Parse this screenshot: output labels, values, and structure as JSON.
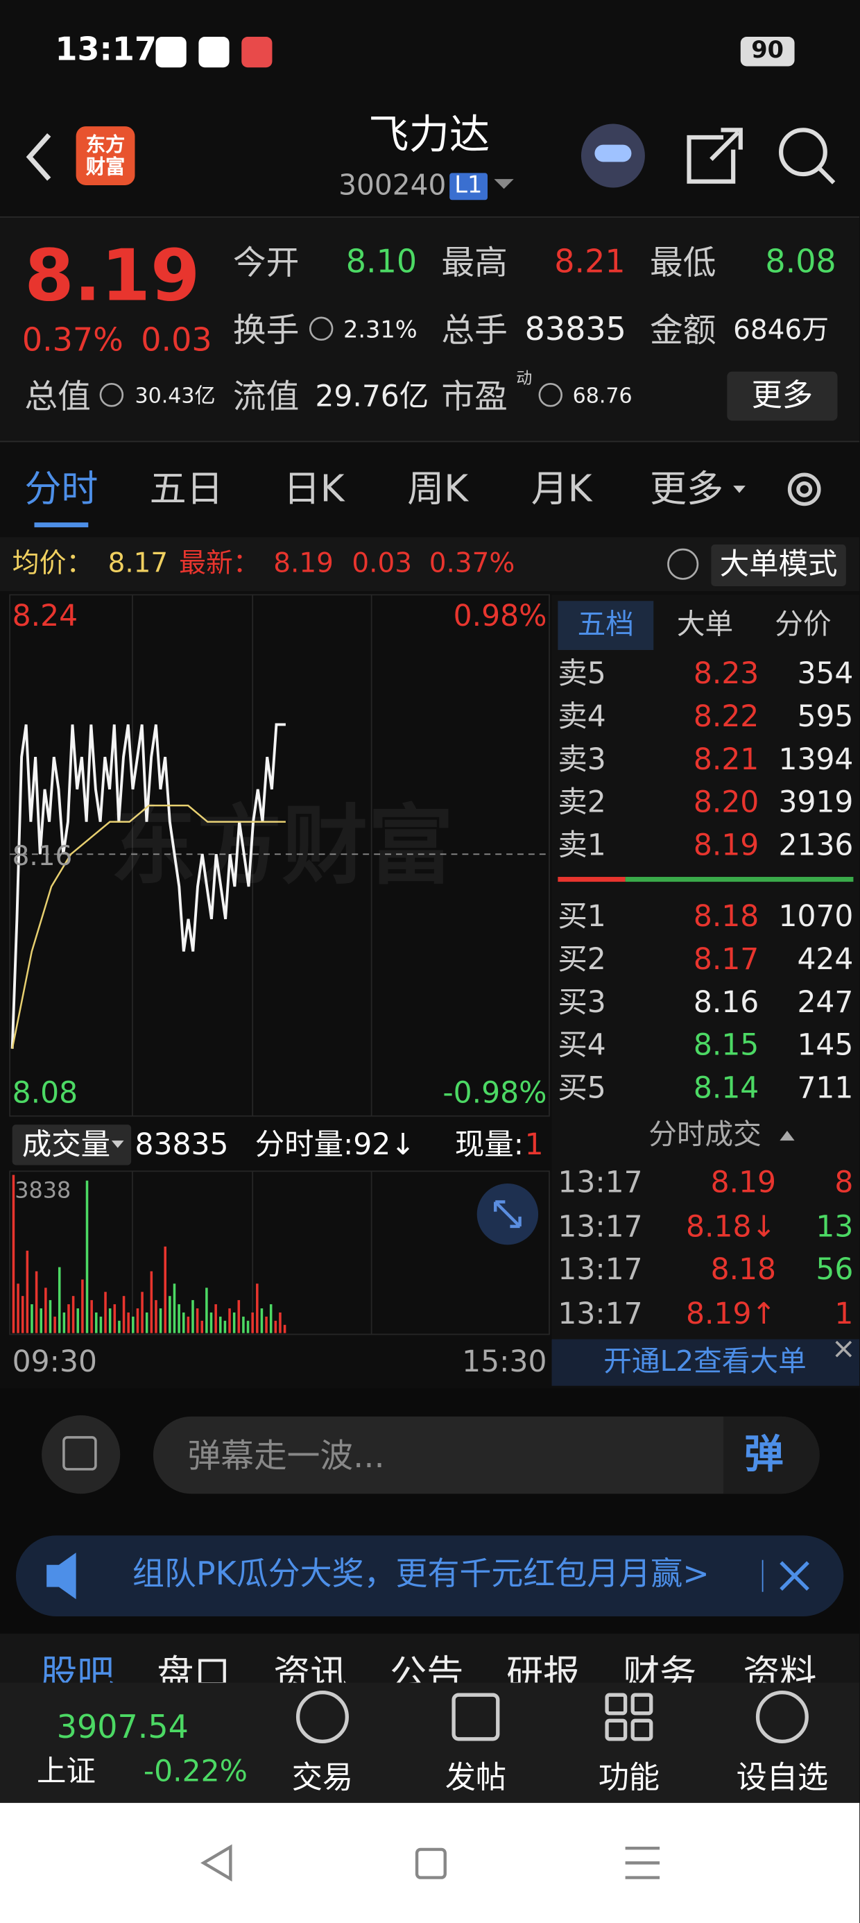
{
  "status_bar": {
    "time": "13:17",
    "battery": "90"
  },
  "header": {
    "logo": "东方财富",
    "title": "飞力达",
    "code": "300240",
    "level": "L1"
  },
  "quote": {
    "price": "8.19",
    "change_pct": "0.37%",
    "change": "0.03",
    "fields": [
      {
        "label": "今开",
        "value": "8.10"
      },
      {
        "label": "最高",
        "value": "8.21"
      },
      {
        "label": "最低",
        "value": "8.08"
      },
      {
        "label": "换手",
        "value": "2.31%"
      },
      {
        "label": "总手",
        "value": "83835"
      },
      {
        "label": "金额",
        "value": "6846万"
      },
      {
        "label": "总值",
        "value": "30.43亿"
      },
      {
        "label": "流值",
        "value": "29.76亿"
      },
      {
        "label": "市盈",
        "superscript": "动",
        "value": "68.76"
      }
    ],
    "more": "更多"
  },
  "tabs": [
    "分时",
    "五日",
    "日K",
    "周K",
    "月K",
    "更多"
  ],
  "info_bar": {
    "avg_label": "均价：",
    "avg": "8.17",
    "latest_label": "最新：",
    "latest": "8.19",
    "change": "0.03",
    "change_pct": "0.37%",
    "mode": "大单模式"
  },
  "intraday": {
    "watermark": "东方财富",
    "ylim": [
      8.08,
      8.24
    ],
    "prev_close": 8.16,
    "high_pct": "0.98%",
    "low_pct": "-0.98%",
    "start_time": "09:30",
    "end_time": "15:30",
    "price": [
      8.1,
      8.14,
      8.19,
      8.2,
      8.17,
      8.19,
      8.16,
      8.18,
      8.17,
      8.19,
      8.18,
      8.16,
      8.17,
      8.2,
      8.18,
      8.19,
      8.17,
      8.2,
      8.18,
      8.17,
      8.19,
      8.18,
      8.2,
      8.17,
      8.19,
      8.2,
      8.18,
      8.19,
      8.2,
      8.17,
      8.19,
      8.2,
      8.18,
      8.19,
      8.17,
      8.16,
      8.15,
      8.13,
      8.14,
      8.13,
      8.15,
      8.16,
      8.15,
      8.14,
      8.16,
      8.15,
      8.14,
      8.16,
      8.15,
      8.17,
      8.16,
      8.15,
      8.17,
      8.18,
      8.17,
      8.19,
      8.18,
      8.2,
      8.2,
      8.2
    ],
    "avg": [
      8.1,
      8.13,
      8.15,
      8.16,
      8.165,
      8.17,
      8.17,
      8.175,
      8.175,
      8.175,
      8.17,
      8.17,
      8.17,
      8.17,
      8.17
    ]
  },
  "volume": {
    "label": "成交量",
    "total": "83835",
    "minute": "分时量:92↓",
    "current_label": "现量:",
    "current": "1",
    "max": 3838,
    "values": [
      3838,
      1200,
      900,
      2000,
      700,
      1500,
      600,
      1100,
      800,
      400,
      1600,
      500,
      700,
      900,
      600,
      1300,
      3700,
      800,
      500,
      400,
      1000,
      600,
      700,
      300,
      900,
      500,
      400,
      600,
      1000,
      500,
      1500,
      800,
      600,
      2100,
      900,
      1200,
      700,
      500,
      400,
      800,
      600,
      300,
      1100,
      500,
      700,
      400,
      300,
      600,
      500,
      800,
      400,
      300,
      500,
      1200,
      600,
      400,
      700,
      300,
      500,
      200
    ]
  },
  "order_book": {
    "tabs": [
      "五档",
      "大单",
      "分价"
    ],
    "asks": [
      [
        "卖5",
        "8.23",
        "354"
      ],
      [
        "卖4",
        "8.22",
        "595"
      ],
      [
        "卖3",
        "8.21",
        "1394"
      ],
      [
        "卖2",
        "8.20",
        "3919"
      ],
      [
        "卖1",
        "8.19",
        "2136"
      ]
    ],
    "bids": [
      [
        "买1",
        "8.18",
        "1070"
      ],
      [
        "买2",
        "8.17",
        "424"
      ],
      [
        "买3",
        "8.16",
        "247"
      ],
      [
        "买4",
        "8.15",
        "145"
      ],
      [
        "买5",
        "8.14",
        "711"
      ]
    ]
  },
  "trades": {
    "title": "分时成交",
    "rows": [
      [
        "13:17",
        "8.19",
        "8"
      ],
      [
        "13:17",
        "8.18↓",
        "13"
      ],
      [
        "13:17",
        "8.18",
        "56"
      ],
      [
        "13:17",
        "8.19↑",
        "1"
      ]
    ],
    "l2": "开通L2查看大单"
  },
  "comment": {
    "placeholder": "弹幕走一波...",
    "button": "弹"
  },
  "banner": "组队PK瓜分大奖，更有千元红包月月赢>",
  "sections": [
    "股吧",
    "盘口",
    "资讯",
    "公告",
    "研报",
    "财务",
    "资料"
  ],
  "bottom_nav": {
    "index_value": "3907.54",
    "index_name": "上证",
    "index_change": "-0.22%",
    "items": [
      "交易",
      "发帖",
      "功能",
      "设自选"
    ]
  }
}
